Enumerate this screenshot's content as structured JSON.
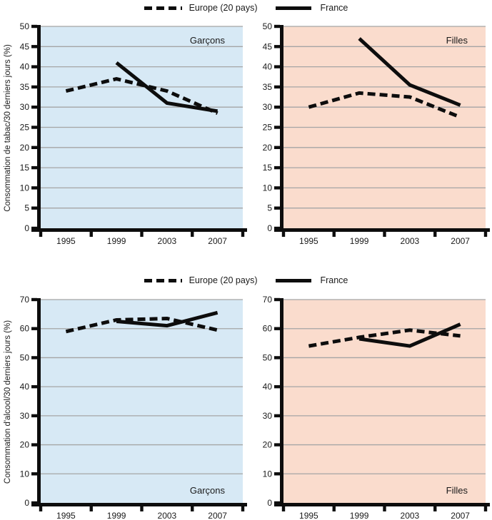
{
  "legend": {
    "europe": "Europe (20 pays)",
    "france": "France"
  },
  "colors": {
    "boys_panel_bg": "#d7e9f5",
    "girls_panel_bg": "#fadccd",
    "gridline": "#a5a5a5",
    "series_line": "#0d0d0d",
    "text": "#1a1a1a"
  },
  "chart_data": [
    {
      "type": "line",
      "panel_label": "Garçons",
      "panel_label_pos": "top",
      "bg": "boys_panel_bg",
      "ylabel": "Consommation de tabac/30 derniers jours (%)",
      "xlabel": "",
      "categories": [
        "1995",
        "1999",
        "2003",
        "2007"
      ],
      "ylim": [
        0,
        50
      ],
      "ytick_step": 5,
      "grid": true,
      "legend_position": "top-center-shared",
      "series": [
        {
          "name": "Europe (20 pays)",
          "style": "dashed",
          "values": [
            34,
            37,
            34,
            28.5
          ]
        },
        {
          "name": "France",
          "style": "solid",
          "values": [
            null,
            41,
            31,
            29
          ]
        }
      ]
    },
    {
      "type": "line",
      "panel_label": "Filles",
      "panel_label_pos": "top",
      "bg": "girls_panel_bg",
      "ylabel": "",
      "xlabel": "",
      "categories": [
        "1995",
        "1999",
        "2003",
        "2007"
      ],
      "ylim": [
        0,
        50
      ],
      "ytick_step": 5,
      "grid": true,
      "legend_position": "top-center-shared",
      "series": [
        {
          "name": "Europe (20 pays)",
          "style": "dashed",
          "values": [
            30,
            33.5,
            32.5,
            27.5
          ]
        },
        {
          "name": "France",
          "style": "solid",
          "values": [
            null,
            47,
            35.5,
            30.5
          ]
        }
      ]
    },
    {
      "type": "line",
      "panel_label": "Garçons",
      "panel_label_pos": "bottom",
      "bg": "boys_panel_bg",
      "ylabel": "Consommation d'alcool/30 derniers jours (%)",
      "xlabel": "",
      "categories": [
        "1995",
        "1999",
        "2003",
        "2007"
      ],
      "ylim": [
        0,
        70
      ],
      "ytick_step": 10,
      "grid": true,
      "legend_position": "top-center-shared",
      "series": [
        {
          "name": "Europe (20 pays)",
          "style": "dashed",
          "values": [
            59,
            63,
            63.5,
            59.5
          ]
        },
        {
          "name": "France",
          "style": "solid",
          "values": [
            null,
            62.5,
            61,
            65.5
          ]
        }
      ]
    },
    {
      "type": "line",
      "panel_label": "Filles",
      "panel_label_pos": "bottom",
      "bg": "girls_panel_bg",
      "ylabel": "",
      "xlabel": "",
      "categories": [
        "1995",
        "1999",
        "2003",
        "2007"
      ],
      "ylim": [
        0,
        70
      ],
      "ytick_step": 10,
      "grid": true,
      "legend_position": "top-center-shared",
      "series": [
        {
          "name": "Europe (20 pays)",
          "style": "dashed",
          "values": [
            54,
            57,
            59.5,
            57.5
          ]
        },
        {
          "name": "France",
          "style": "solid",
          "values": [
            null,
            56.5,
            54,
            61.5
          ]
        }
      ]
    }
  ]
}
